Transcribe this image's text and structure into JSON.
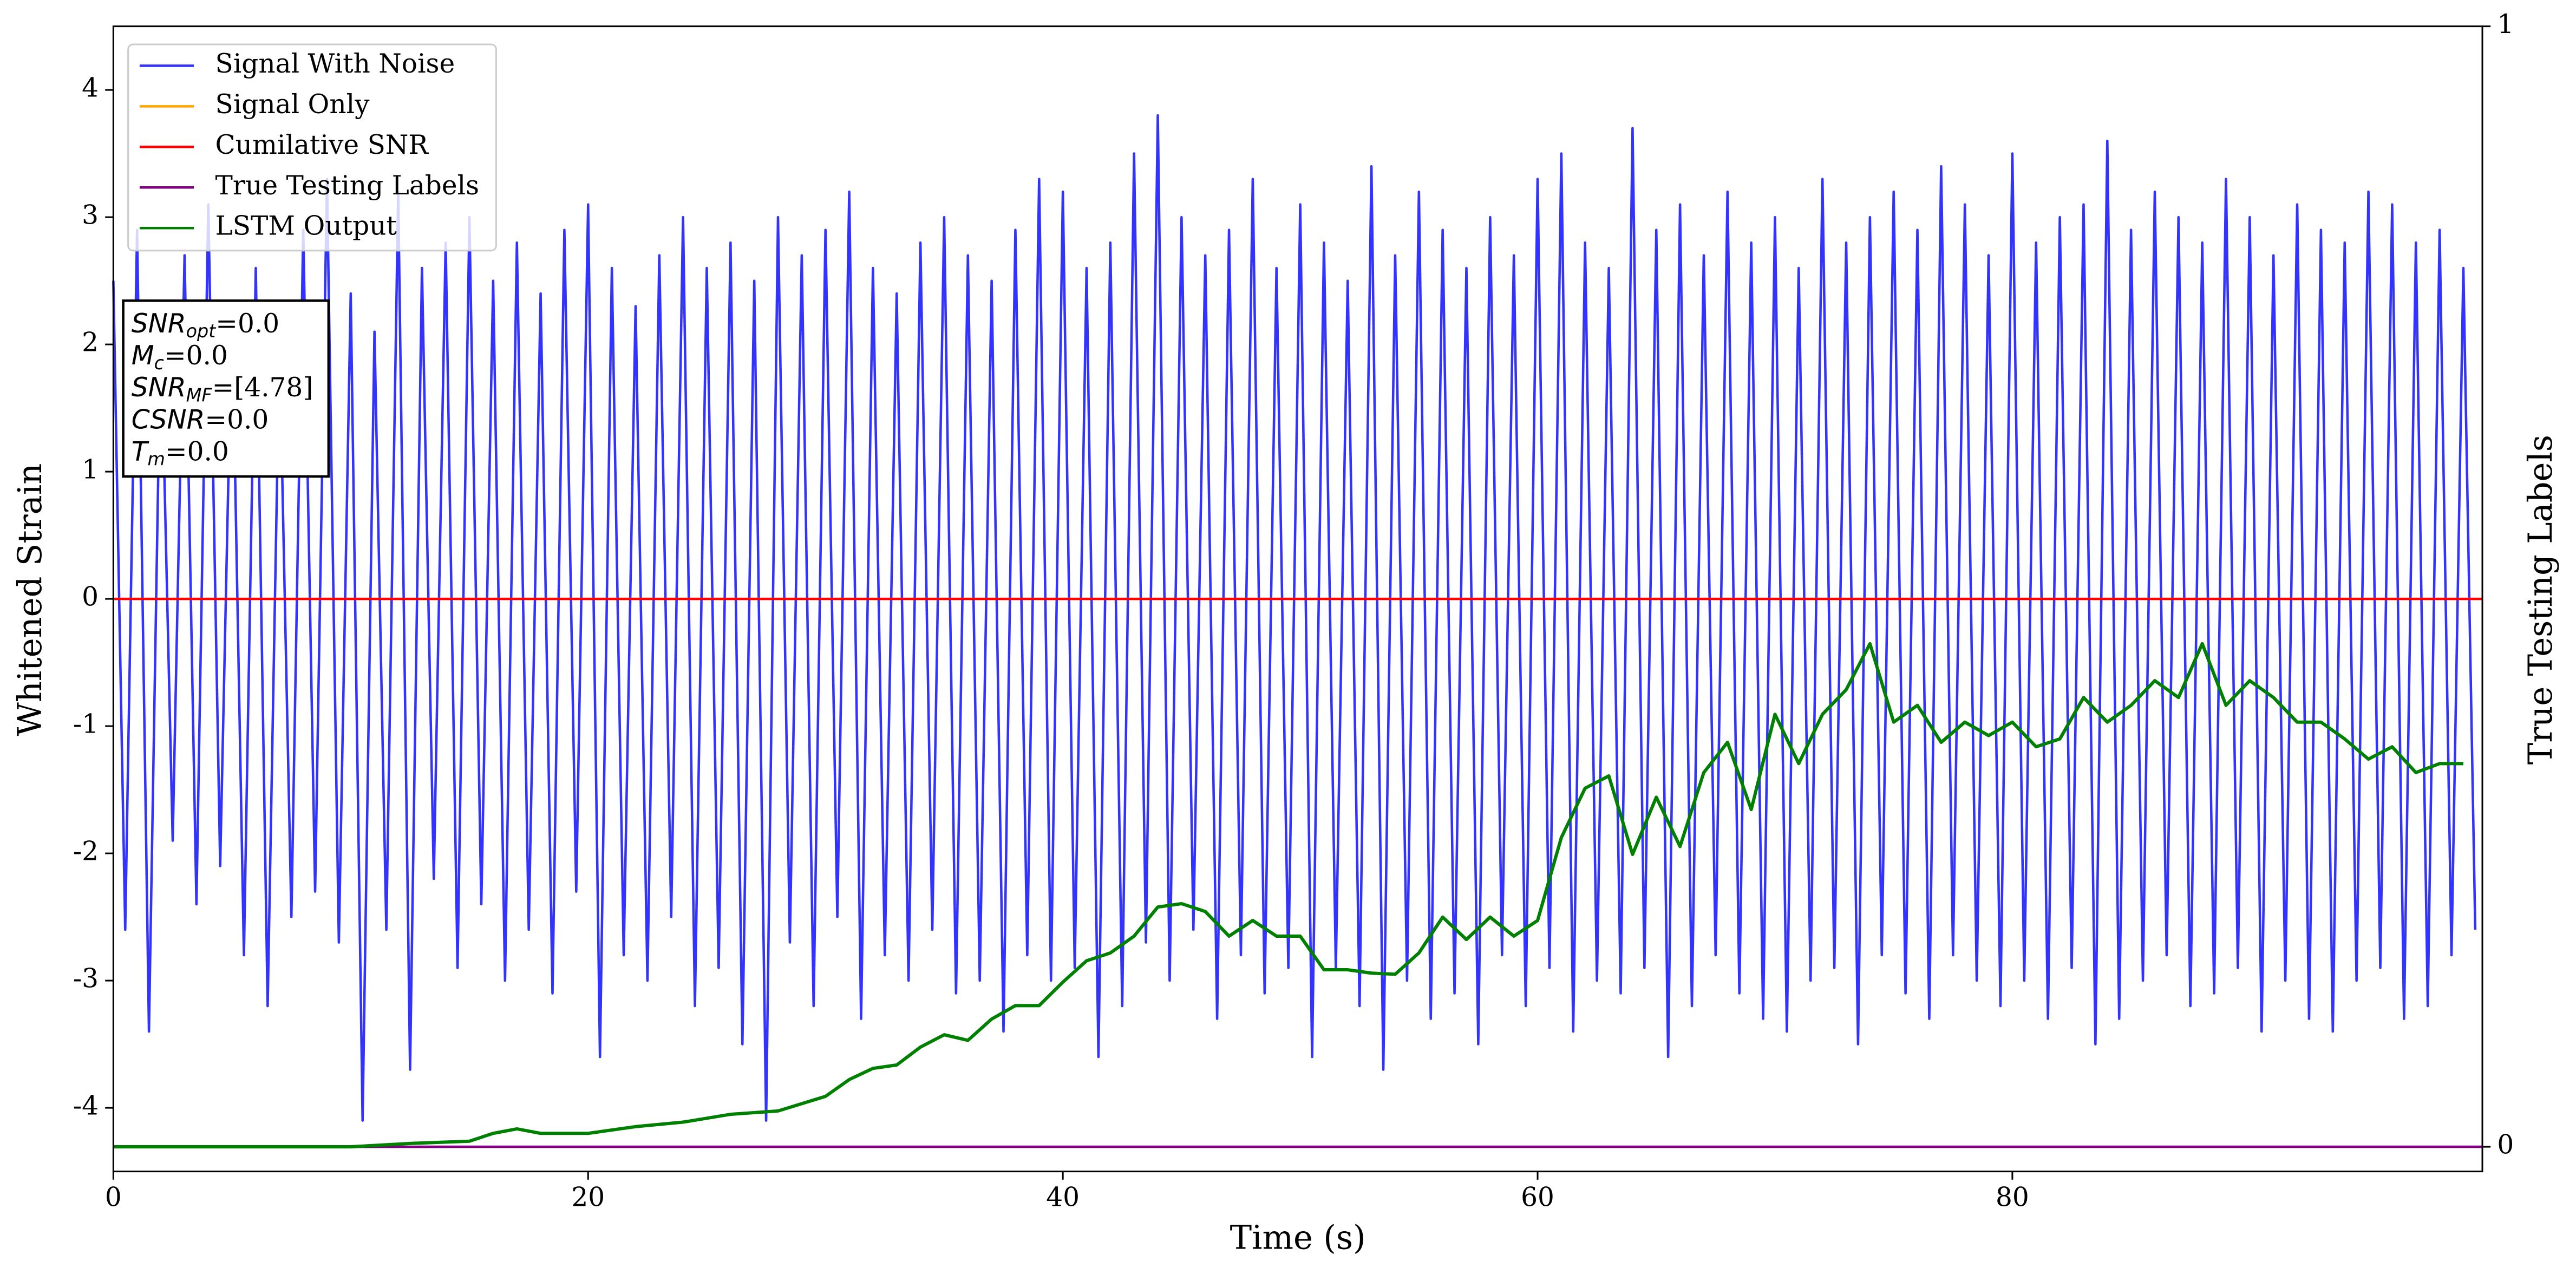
{
  "chart_data": {
    "type": "line",
    "xlabel": "Time (s)",
    "ylabel": "Whitened Strain",
    "y2label": "True Testing Labels",
    "xlim": [
      0,
      99.8
    ],
    "xticks": [
      0,
      20,
      40,
      60,
      80
    ],
    "ylim": [
      -4.5,
      4.5
    ],
    "yticks": [
      -4,
      -3,
      -2,
      -1,
      0,
      1,
      2,
      3,
      4
    ],
    "y2lim": [
      -0.022,
      1
    ],
    "y2ticks": [
      0,
      1
    ],
    "legend": "upper left",
    "annotation": [
      {
        "main": "SNR",
        "sub": "opt",
        "text": "=0.0"
      },
      {
        "main": "M",
        "sub": "c",
        "text": "=0.0"
      },
      {
        "main": "SNR",
        "sub": "MF",
        "text": "=[4.78]"
      },
      {
        "main": "CSNR",
        "text": "=0.0"
      },
      {
        "main": "T",
        "sub": "m",
        "text": "=0.0"
      }
    ],
    "series": [
      {
        "name": "Signal With Noise",
        "color": "#3333ff",
        "x": [
          0,
          0.5,
          1,
          1.5,
          2,
          2.5,
          3,
          3.5,
          4,
          4.5,
          5,
          5.5,
          6,
          6.5,
          7,
          7.5,
          8,
          8.5,
          9,
          9.5,
          10,
          10.5,
          11,
          11.5,
          12,
          12.5,
          13,
          13.5,
          14,
          14.5,
          15,
          15.5,
          16,
          16.5,
          17,
          17.5,
          18,
          18.5,
          19,
          19.5,
          20,
          20.5,
          21,
          21.5,
          22,
          22.5,
          23,
          23.5,
          24,
          24.5,
          25,
          25.5,
          26,
          26.5,
          27,
          27.5,
          28,
          28.5,
          29,
          29.5,
          30,
          30.5,
          31,
          31.5,
          32,
          32.5,
          33,
          33.5,
          34,
          34.5,
          35,
          35.5,
          36,
          36.5,
          37,
          37.5,
          38,
          38.5,
          39,
          39.5,
          40,
          40.5,
          41,
          41.5,
          42,
          42.5,
          43,
          43.5,
          44,
          44.5,
          45,
          45.5,
          46,
          46.5,
          47,
          47.5,
          48,
          48.5,
          49,
          49.5,
          50,
          50.5,
          51,
          51.5,
          52,
          52.5,
          53,
          53.5,
          54,
          54.5,
          55,
          55.5,
          56,
          56.5,
          57,
          57.5,
          58,
          58.5,
          59,
          59.5,
          60,
          60.5,
          61,
          61.5,
          62,
          62.5,
          63,
          63.5,
          64,
          64.5,
          65,
          65.5,
          66,
          66.5,
          67,
          67.5,
          68,
          68.5,
          69,
          69.5,
          70,
          70.5,
          71,
          71.5,
          72,
          72.5,
          73,
          73.5,
          74,
          74.5,
          75,
          75.5,
          76,
          76.5,
          77,
          77.5,
          78,
          78.5,
          79,
          79.5,
          80,
          80.5,
          81,
          81.5,
          82,
          82.5,
          83,
          83.5,
          84,
          84.5,
          85,
          85.5,
          86,
          86.5,
          87,
          87.5,
          88,
          88.5,
          89,
          89.5,
          90,
          90.5,
          91,
          91.5,
          92,
          92.5,
          93,
          93.5,
          94,
          94.5,
          95,
          95.5,
          96,
          96.5,
          97,
          97.5,
          98,
          98.5,
          99,
          99.5
        ],
        "values": [
          2.5,
          -2.6,
          2.9,
          -3.4,
          2.2,
          -1.9,
          2.7,
          -2.4,
          3.1,
          -2.1,
          2.3,
          -2.8,
          2.6,
          -3.2,
          2.0,
          -2.5,
          2.9,
          -2.3,
          3.3,
          -2.7,
          2.4,
          -4.1,
          2.1,
          -2.6,
          3.2,
          -3.7,
          2.6,
          -2.2,
          2.8,
          -2.9,
          3.0,
          -2.4,
          2.5,
          -3.0,
          2.8,
          -2.6,
          2.4,
          -3.1,
          2.9,
          -2.3,
          3.1,
          -3.6,
          2.6,
          -2.8,
          2.3,
          -3.0,
          2.7,
          -2.5,
          3.0,
          -3.2,
          2.6,
          -2.9,
          2.8,
          -3.5,
          2.5,
          -4.1,
          3.0,
          -2.7,
          2.7,
          -3.2,
          2.9,
          -2.5,
          3.2,
          -3.3,
          2.6,
          -2.8,
          2.4,
          -3.0,
          2.8,
          -2.6,
          3.0,
          -3.1,
          2.7,
          -3.0,
          2.5,
          -3.4,
          2.9,
          -2.8,
          3.3,
          -3.0,
          3.2,
          -2.9,
          2.6,
          -3.6,
          2.8,
          -3.2,
          3.5,
          -2.7,
          3.8,
          -3.0,
          3.0,
          -2.6,
          2.7,
          -3.3,
          2.9,
          -2.8,
          3.3,
          -3.1,
          2.6,
          -2.9,
          3.1,
          -3.6,
          2.8,
          -2.9,
          2.5,
          -3.2,
          3.4,
          -3.7,
          2.7,
          -3.0,
          3.2,
          -3.3,
          2.9,
          -3.1,
          2.6,
          -3.5,
          3.0,
          -2.8,
          2.7,
          -3.2,
          3.3,
          -2.9,
          3.5,
          -3.4,
          2.8,
          -3.0,
          2.6,
          -3.1,
          3.7,
          -2.9,
          2.9,
          -3.6,
          3.1,
          -3.2,
          2.7,
          -2.8,
          3.2,
          -3.1,
          2.8,
          -3.3,
          3.0,
          -3.4,
          2.6,
          -3.0,
          3.3,
          -2.9,
          2.8,
          -3.5,
          3.0,
          -2.8,
          3.2,
          -3.1,
          2.9,
          -3.3,
          3.4,
          -2.8,
          3.1,
          -3.0,
          2.7,
          -3.2,
          3.5,
          -3.0,
          2.8,
          -3.3,
          3.0,
          -2.9,
          3.1,
          -3.5,
          3.6,
          -3.3,
          2.9,
          -3.0,
          3.2,
          -2.8,
          3.0,
          -3.2,
          2.8,
          -3.1,
          3.3,
          -2.9,
          3.0,
          -3.4,
          2.7,
          -3.0,
          3.1,
          -3.3,
          2.9,
          -3.4,
          2.8,
          -3.0,
          3.2,
          -2.9,
          3.1,
          -3.3,
          2.8,
          -3.2,
          2.9,
          -2.8,
          2.6,
          -2.6
        ]
      },
      {
        "name": "Signal Only",
        "color": "#ffa500",
        "x": [
          0,
          99.8
        ],
        "values": [
          0,
          0
        ]
      },
      {
        "name": "Cumilative SNR",
        "color": "#ff0000",
        "x": [
          0,
          99.8
        ],
        "values": [
          0,
          0
        ]
      },
      {
        "name": "True Testing Labels",
        "color": "#800080",
        "axis": "y2",
        "x": [
          0,
          99.8
        ],
        "values": [
          0,
          0
        ]
      },
      {
        "name": "LSTM Output",
        "color": "#008000",
        "axis": "y2",
        "x": [
          0,
          10,
          12.5,
          15,
          16,
          17,
          18,
          20,
          22,
          24,
          26,
          28,
          30,
          31,
          32,
          33,
          34,
          35,
          36,
          37,
          38,
          39,
          40,
          41,
          42,
          43,
          44,
          45,
          46,
          47,
          48,
          49,
          50,
          51,
          52,
          53,
          54,
          55,
          56,
          57,
          58,
          59,
          60,
          61,
          62,
          63,
          64,
          65,
          66,
          67,
          68,
          69,
          70,
          71,
          72,
          73,
          74,
          75,
          76,
          77,
          78,
          79,
          80,
          81,
          82,
          83,
          84,
          85,
          86,
          87,
          88,
          89,
          90,
          91,
          92,
          93,
          94,
          95,
          96,
          97,
          98,
          99
        ],
        "values": [
          0,
          0,
          0.003,
          0.005,
          0.012,
          0.016,
          0.012,
          0.012,
          0.018,
          0.022,
          0.029,
          0.032,
          0.045,
          0.06,
          0.07,
          0.073,
          0.089,
          0.1,
          0.095,
          0.114,
          0.126,
          0.126,
          0.147,
          0.166,
          0.173,
          0.188,
          0.214,
          0.217,
          0.21,
          0.188,
          0.202,
          0.188,
          0.188,
          0.158,
          0.158,
          0.155,
          0.154,
          0.173,
          0.205,
          0.185,
          0.205,
          0.188,
          0.202,
          0.276,
          0.32,
          0.331,
          0.261,
          0.312,
          0.268,
          0.334,
          0.361,
          0.301,
          0.386,
          0.342,
          0.386,
          0.408,
          0.449,
          0.379,
          0.394,
          0.361,
          0.379,
          0.367,
          0.379,
          0.357,
          0.364,
          0.401,
          0.379,
          0.394,
          0.416,
          0.401,
          0.449,
          0.394,
          0.416,
          0.401,
          0.379,
          0.379,
          0.364,
          0.346,
          0.357,
          0.334,
          0.342,
          0.342
        ]
      }
    ]
  }
}
